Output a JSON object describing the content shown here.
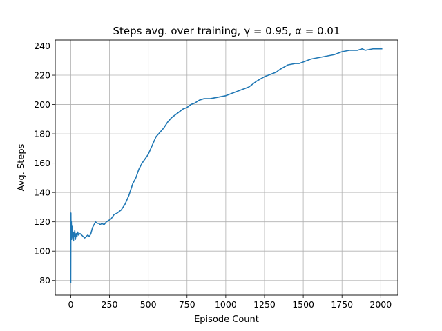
{
  "chart_data": {
    "type": "line",
    "title": "Steps avg. over training, γ = 0.95, α = 0.01",
    "xlabel": "Episode Count",
    "ylabel": "Avg. Steps",
    "xlim": [
      -100,
      2110
    ],
    "ylim": [
      70,
      244
    ],
    "xticks": [
      0,
      250,
      500,
      750,
      1000,
      1250,
      1500,
      1750,
      2000
    ],
    "yticks": [
      80,
      100,
      120,
      140,
      160,
      180,
      200,
      220,
      240
    ],
    "grid": true,
    "colors": {
      "line": "#1f77b4",
      "grid": "#b0b0b0",
      "axes": "#000000"
    },
    "series": [
      {
        "x": [
          0,
          1,
          2,
          4,
          6,
          8,
          10,
          12,
          14,
          16,
          18,
          20,
          23,
          26,
          30,
          35,
          40,
          45,
          50,
          60,
          70,
          80,
          90,
          100,
          110,
          120,
          130,
          140,
          150,
          160,
          170,
          180,
          190,
          200,
          215,
          230,
          245,
          260,
          280,
          300,
          325,
          350,
          375,
          400,
          420,
          440,
          460,
          480,
          500,
          525,
          550,
          575,
          600,
          625,
          650,
          675,
          700,
          725,
          750,
          775,
          800,
          830,
          860,
          900,
          950,
          1000,
          1025,
          1050,
          1100,
          1150,
          1200,
          1250,
          1275,
          1300,
          1325,
          1350,
          1400,
          1450,
          1475,
          1500,
          1550,
          1600,
          1650,
          1700,
          1750,
          1800,
          1850,
          1880,
          1900,
          1950,
          2000,
          2010
        ],
        "y": [
          78,
          126,
          112,
          120,
          108,
          117,
          111,
          114,
          109,
          112,
          107,
          113,
          110,
          114,
          108,
          112,
          110,
          113,
          111,
          112,
          111,
          110,
          109,
          110,
          111,
          110,
          112,
          116,
          118,
          120,
          119,
          119,
          118,
          119,
          118,
          120,
          121,
          122,
          125,
          126,
          128,
          132,
          138,
          146,
          150,
          156,
          160,
          163,
          166,
          172,
          178,
          181,
          184,
          188,
          191,
          193,
          195,
          197,
          198,
          200,
          201,
          203,
          204,
          204,
          205,
          206,
          207,
          208,
          210,
          212,
          216,
          219,
          220,
          221,
          222,
          224,
          227,
          228,
          228,
          229,
          231,
          232,
          233,
          234,
          236,
          237,
          237,
          238,
          237,
          238,
          238,
          238
        ]
      }
    ]
  }
}
